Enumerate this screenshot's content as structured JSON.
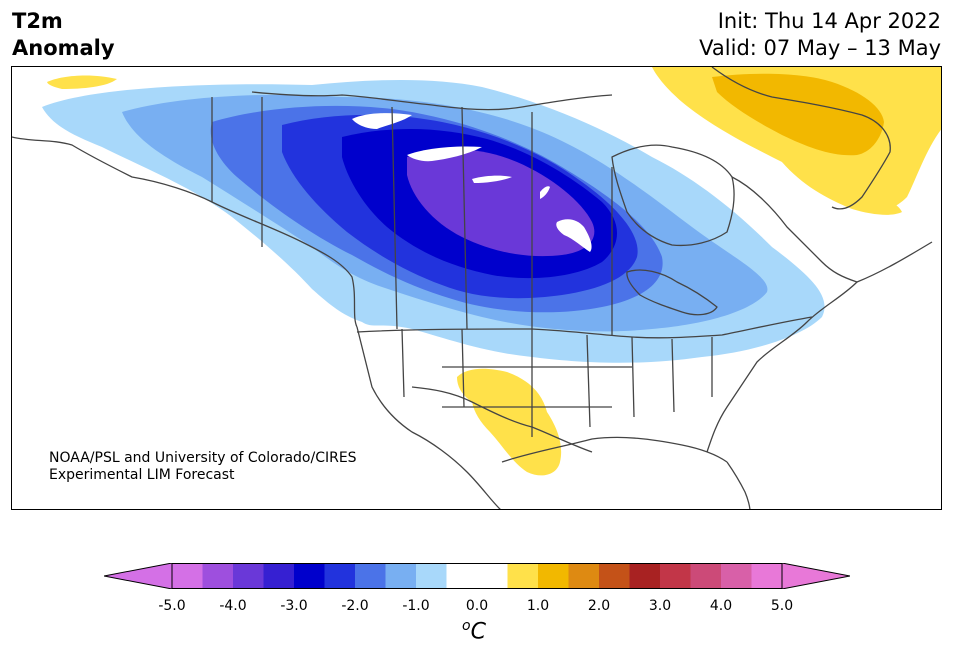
{
  "header": {
    "title_line1": "T2m",
    "title_line2": "Anomaly",
    "init": "Init: Thu 14 Apr 2022",
    "valid": "Valid: 07 May – 13 May"
  },
  "credit": {
    "line1": "NOAA/PSL and University of Colorado/CIRES",
    "line2": "Experimental LIM Forecast"
  },
  "colorbar": {
    "unit_base": "C",
    "unit_sup": "o",
    "ticks": [
      "-5.0",
      "-4.0",
      "-3.0",
      "-2.0",
      "-1.0",
      "0.0",
      "1.0",
      "2.0",
      "3.0",
      "4.0",
      "5.0"
    ],
    "colors": [
      "#d470e6",
      "#9e4fde",
      "#6a38d8",
      "#3620d2",
      "#0000cc",
      "#2233dd",
      "#4b73e8",
      "#78aff2",
      "#a8d8fa",
      "#ffffff",
      "#ffffff",
      "#ffe14a",
      "#f2b800",
      "#de8a12",
      "#c45218",
      "#a82222",
      "#c23648",
      "#cc4a78",
      "#d860a8",
      "#e878d8"
    ],
    "under_color": "#d470e6",
    "over_color": "#e878d8"
  },
  "map": {
    "region": "North America",
    "colors": {
      "light_blue": "#a8d8fa",
      "blue2": "#78aff2",
      "blue3": "#4b73e8",
      "blue4": "#2233dd",
      "blue5": "#0000cc",
      "purple": "#6a38d8",
      "yellow": "#ffe14a",
      "orange": "#f2b800",
      "land_line": "#444444"
    }
  }
}
